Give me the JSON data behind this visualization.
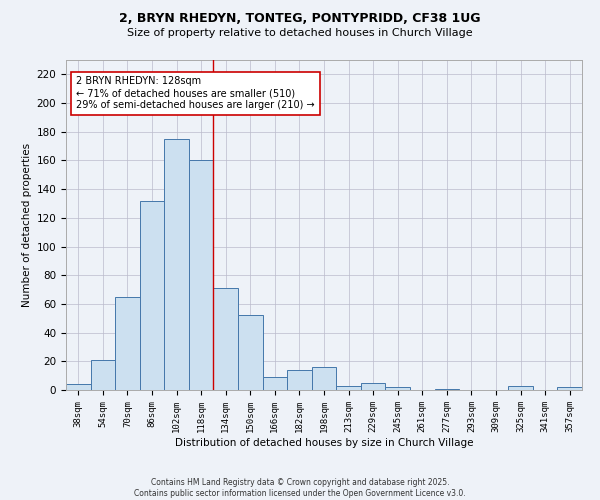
{
  "title_line1": "2, BRYN RHEDYN, TONTEG, PONTYPRIDD, CF38 1UG",
  "title_line2": "Size of property relative to detached houses in Church Village",
  "xlabel": "Distribution of detached houses by size in Church Village",
  "ylabel": "Number of detached properties",
  "categories": [
    "38sqm",
    "54sqm",
    "70sqm",
    "86sqm",
    "102sqm",
    "118sqm",
    "134sqm",
    "150sqm",
    "166sqm",
    "182sqm",
    "198sqm",
    "213sqm",
    "229sqm",
    "245sqm",
    "261sqm",
    "277sqm",
    "293sqm",
    "309sqm",
    "325sqm",
    "341sqm",
    "357sqm"
  ],
  "values": [
    4,
    21,
    65,
    132,
    175,
    160,
    71,
    52,
    9,
    14,
    16,
    3,
    5,
    2,
    0,
    1,
    0,
    0,
    3,
    0,
    2
  ],
  "bar_color": "#cce0f0",
  "bar_edge_color": "#4477aa",
  "vline_x": 5.5,
  "vline_color": "#cc0000",
  "annotation_text": "2 BRYN RHEDYN: 128sqm\n← 71% of detached houses are smaller (510)\n29% of semi-detached houses are larger (210) →",
  "annotation_box_color": "#ffffff",
  "annotation_box_edge": "#cc0000",
  "ylim": [
    0,
    230
  ],
  "yticks": [
    0,
    20,
    40,
    60,
    80,
    100,
    120,
    140,
    160,
    180,
    200,
    220
  ],
  "footer": "Contains HM Land Registry data © Crown copyright and database right 2025.\nContains public sector information licensed under the Open Government Licence v3.0.",
  "bg_color": "#eef2f8",
  "plot_bg_color": "#eef2f8",
  "grid_color": "#bbbbcc"
}
